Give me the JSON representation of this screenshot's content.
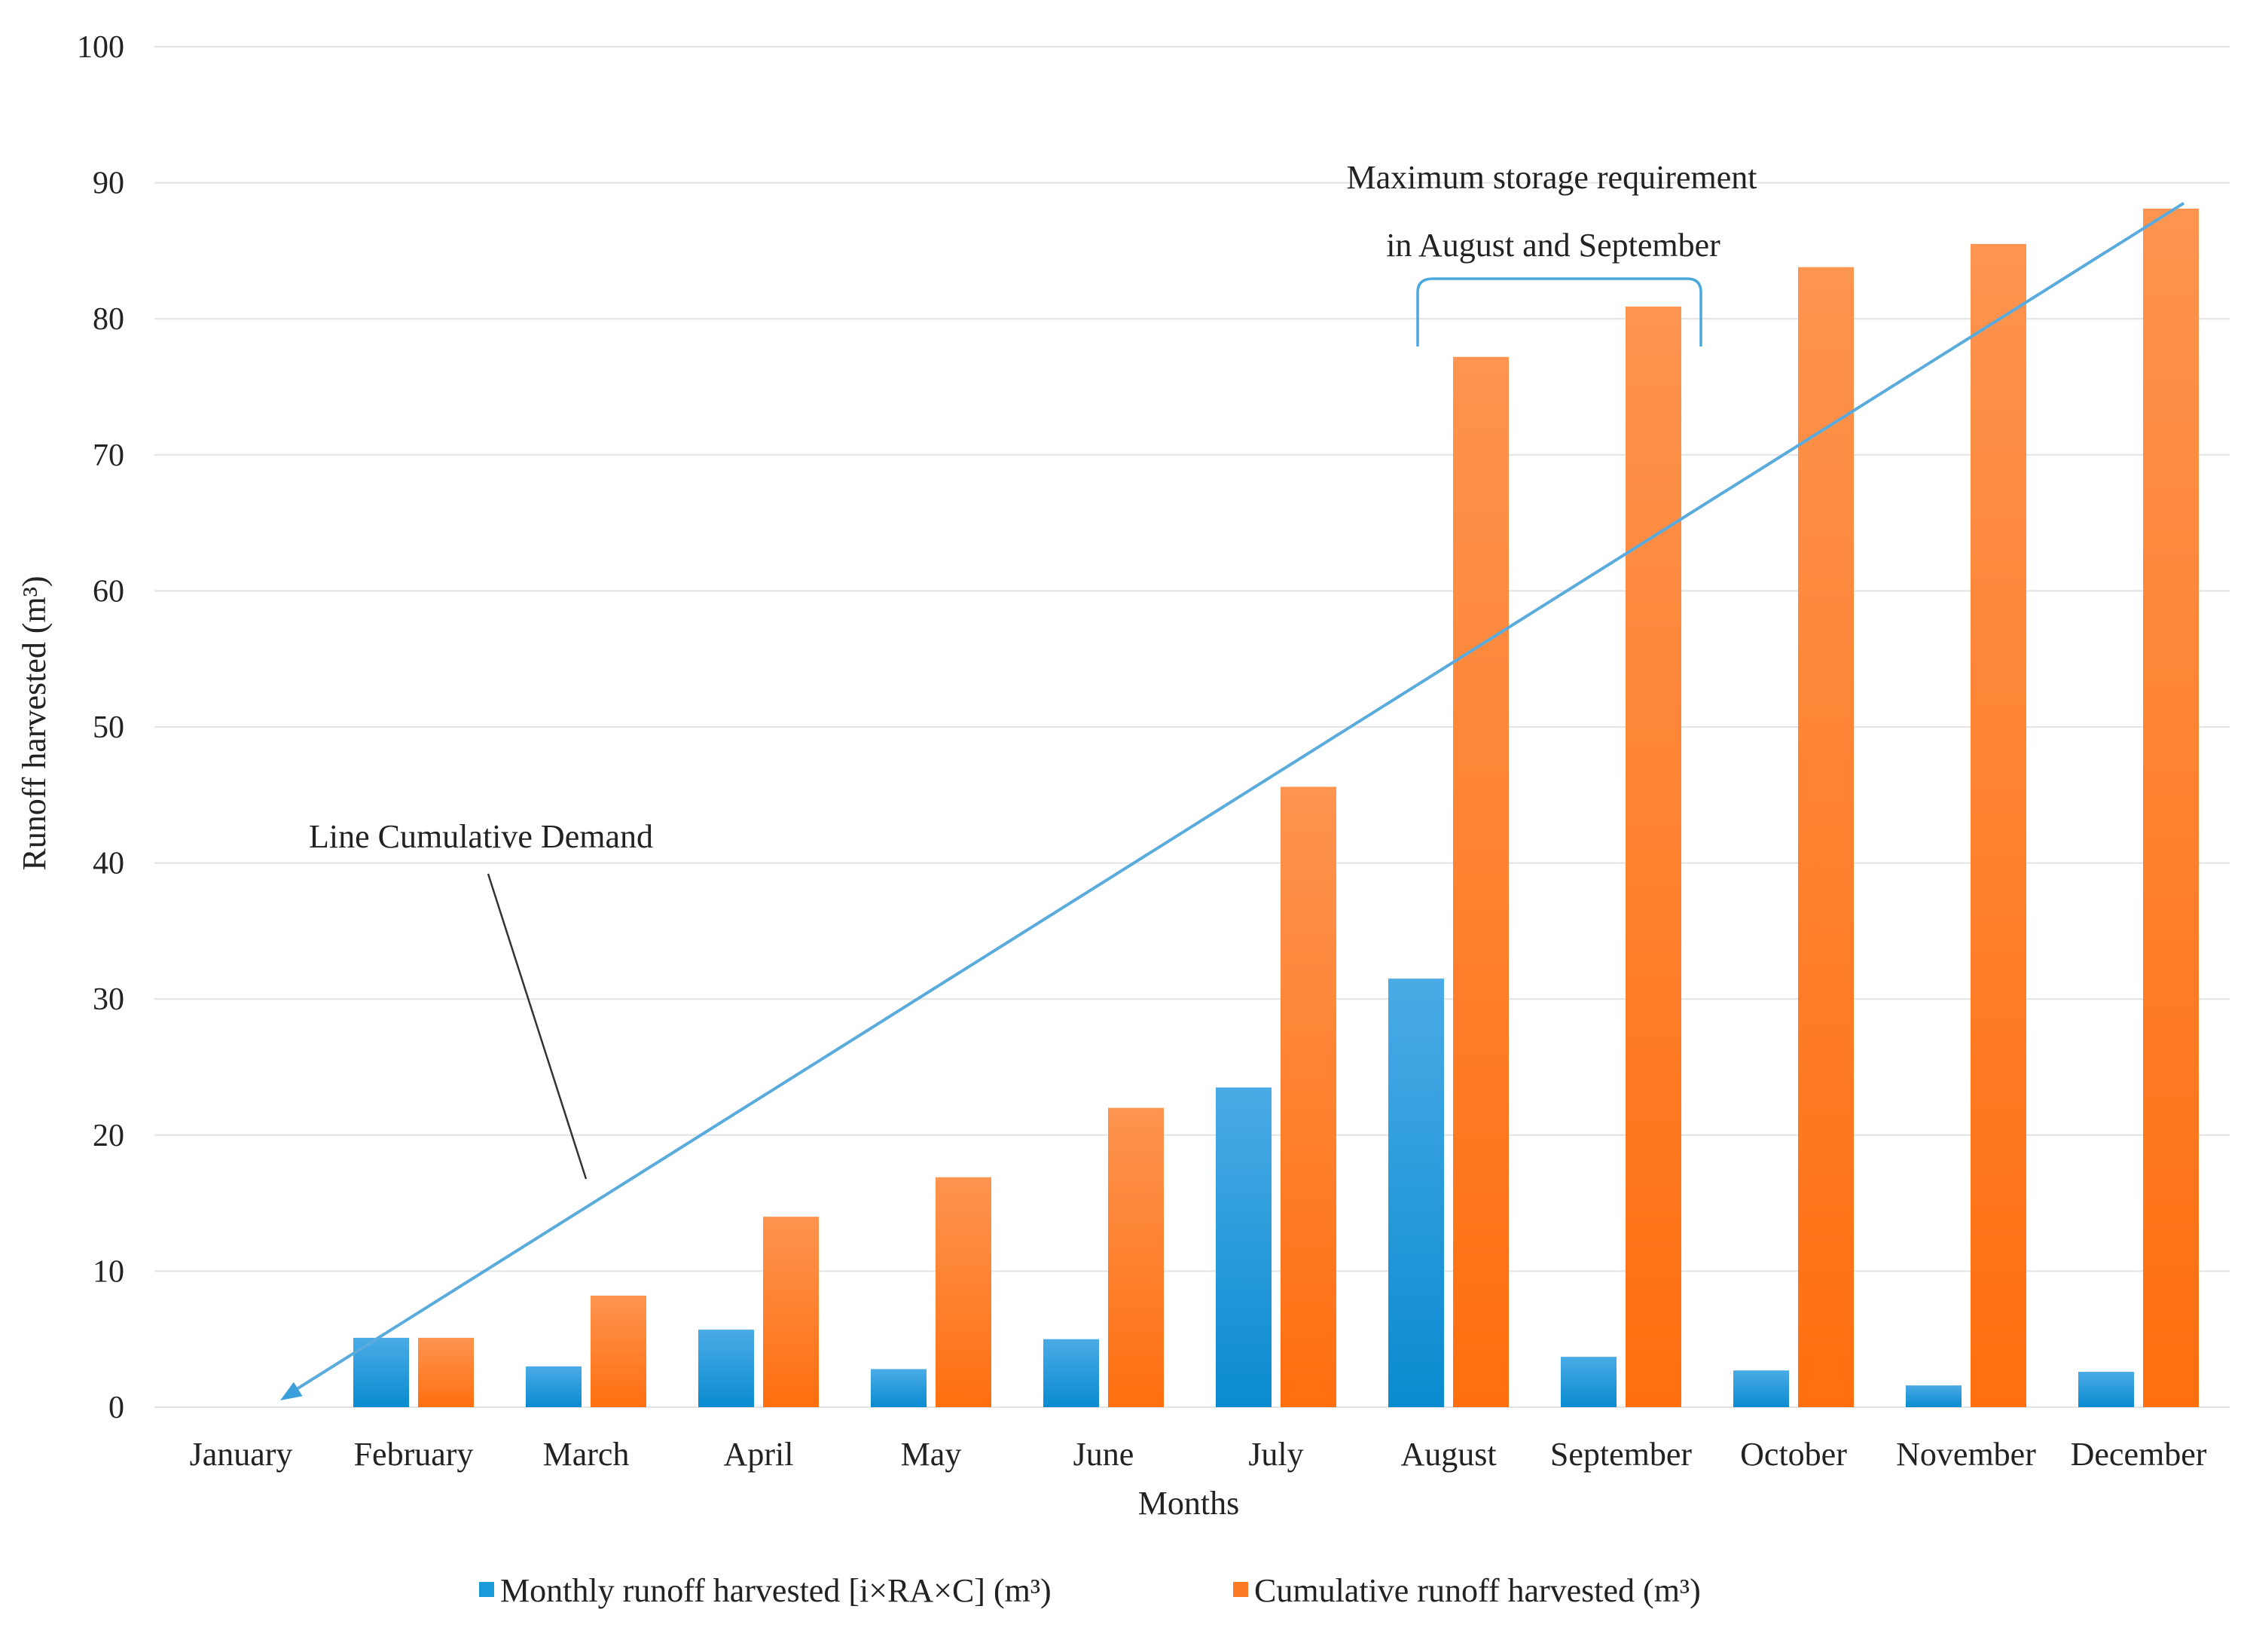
{
  "chart_data": {
    "type": "bar",
    "title": "",
    "xlabel": "Months",
    "ylabel": "Runoff harvested (m³)",
    "ylim": [
      0,
      100
    ],
    "yticks": [
      "0",
      "10",
      "20",
      "30",
      "40",
      "50",
      "60",
      "70",
      "80",
      "90",
      "100"
    ],
    "grid": true,
    "legend_position": "bottom",
    "categories": [
      "January",
      "February",
      "March",
      "April",
      "May",
      "June",
      "July",
      "August",
      "September",
      "October",
      "November",
      "December"
    ],
    "series": [
      {
        "name": "Monthly runoff harvested [i×RA×C] (m³)",
        "color": "#1a9ad9",
        "values": [
          0,
          5.1,
          3.0,
          5.7,
          2.8,
          5.0,
          23.5,
          31.5,
          3.7,
          2.7,
          1.6,
          2.6
        ]
      },
      {
        "name": "Cumulative runoff harvested (m³)",
        "color": "#fb7a26",
        "values": [
          0,
          5.1,
          8.2,
          14.0,
          16.9,
          22.0,
          45.6,
          77.2,
          80.9,
          83.8,
          85.5,
          88.1
        ]
      }
    ],
    "demand_line": {
      "color": "#5aabdd",
      "start": {
        "category": "January",
        "value": 0.5
      },
      "end": {
        "category": "December",
        "value": 88.5
      }
    },
    "annotations": {
      "demand_label": "Line Cumulative Demand",
      "storage_label_line1": "Maximum storage requirement",
      "storage_label_line2": "in August and September",
      "storage_range": [
        "August",
        "September"
      ]
    }
  }
}
